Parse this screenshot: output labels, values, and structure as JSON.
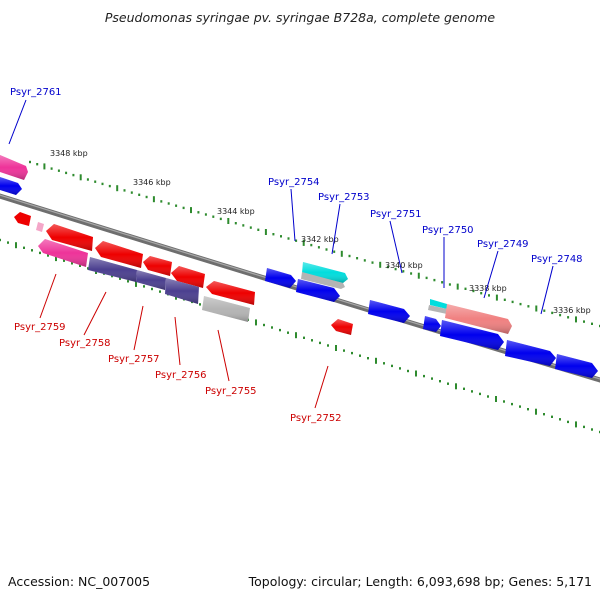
{
  "title": "Pseudomonas syringae pv. syringae B728a, complete genome",
  "accession": "Accession: NC_007005",
  "topology": "Topology: circular; Length: 6,093,698 bp; Genes: 5,171",
  "ticks": [
    "3348 kbp",
    "3346 kbp",
    "3344 kbp",
    "3342 kbp",
    "3340 kbp",
    "3338 kbp",
    "3336 kbp"
  ],
  "labels_forward": [
    "Psyr_2761",
    "Psyr_2754",
    "Psyr_2753",
    "Psyr_2751",
    "Psyr_2750",
    "Psyr_2749",
    "Psyr_2748"
  ],
  "labels_reverse": [
    "Psyr_2759",
    "Psyr_2758",
    "Psyr_2757",
    "Psyr_2756",
    "Psyr_2755",
    "Psyr_2752"
  ],
  "colors": {
    "forward_label": "#0000cc",
    "reverse_label": "#cc0000",
    "tick_dot": "#2e8b2e",
    "backbone": "#707070",
    "blue_gene": "#0000ee",
    "red_gene": "#ee0000",
    "pink_gene": "#ee3399",
    "purple_gene": "#4b3f8f",
    "gray_gene": "#b4b4b4",
    "cyan_gene": "#00dddd",
    "salmon_gene": "#f08080"
  }
}
